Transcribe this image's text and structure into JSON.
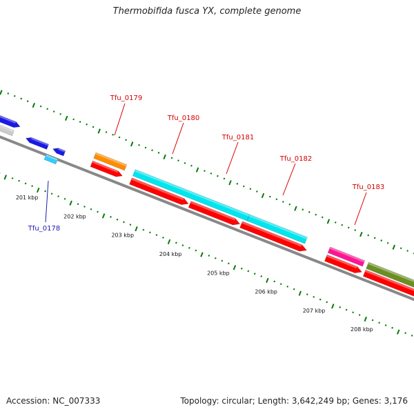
{
  "title": "Thermobifida fusca YX, complete genome",
  "footer": {
    "accession": "Accession: NC_007333",
    "stats": "Topology: circular; Length: 3,642,249 bp; Genes: 3,176"
  },
  "colors": {
    "backbone": "#888888",
    "tick": "#007a00",
    "label_forward": "#d40000",
    "label_reverse": "#1a1ab0"
  },
  "scale_labels": [
    "201 kbp",
    "202 kbp",
    "203 kbp",
    "204 kbp",
    "205 kbp",
    "206 kbp",
    "207 kbp",
    "208 kbp"
  ],
  "genes": [
    {
      "name": "Tfu_0178",
      "color": "#33ccff",
      "strand": "reverse"
    },
    {
      "name": "Tfu_0179",
      "color": "#ff8c00",
      "strand": "forward"
    },
    {
      "name": "Tfu_0180",
      "color": "#00e5ee",
      "strand": "forward"
    },
    {
      "name": "Tfu_0181",
      "color": "#00e5ee",
      "strand": "forward"
    },
    {
      "name": "Tfu_0182",
      "color": "#00e5ee",
      "strand": "forward"
    },
    {
      "name": "Tfu_0183",
      "color": "#ff1493",
      "strand": "forward"
    }
  ]
}
